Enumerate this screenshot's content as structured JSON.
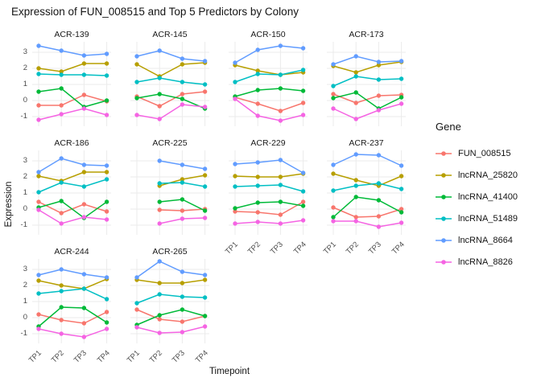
{
  "title": "Expression of FUN_008515 and Top 5 Predictors by Colony",
  "x_axis": {
    "title": "Timepoint",
    "ticks": [
      "TP1",
      "TP2",
      "TP3",
      "TP4"
    ]
  },
  "y_axis": {
    "title": "Expression",
    "ticks": [
      "3",
      "2",
      "1",
      "0",
      "-1"
    ]
  },
  "legend": {
    "title": "Gene",
    "position": "right",
    "entries": [
      {
        "label": "FUN_008515",
        "color": "#F8766D"
      },
      {
        "label": "lncRNA_25820",
        "color": "#B79F00"
      },
      {
        "label": "lncRNA_41400",
        "color": "#00BA38"
      },
      {
        "label": "lncRNA_51489",
        "color": "#00BFC4"
      },
      {
        "label": "lncRNA_8664",
        "color": "#619CFF"
      },
      {
        "label": "lncRNA_8826",
        "color": "#F564E3"
      }
    ]
  },
  "chart_data": {
    "type": "line",
    "x": [
      "TP1",
      "TP2",
      "TP3",
      "TP4"
    ],
    "xlabel": "Timepoint",
    "ylabel": "Expression",
    "ylim": [
      -1.6,
      3.65
    ],
    "y_major_gridlines": [
      3,
      2,
      1,
      0,
      -1
    ],
    "grid": true,
    "legend_position": "right",
    "facets": [
      {
        "colony": "ACR-139",
        "series": {
          "FUN_008515": [
            -0.3,
            -0.3,
            0.35,
            -0.05
          ],
          "lncRNA_25820": [
            2.0,
            1.8,
            2.3,
            2.3
          ],
          "lncRNA_41400": [
            0.55,
            0.75,
            -0.4,
            0.0
          ],
          "lncRNA_51489": [
            1.65,
            1.6,
            1.6,
            1.55
          ],
          "lncRNA_8664": [
            3.4,
            3.1,
            2.8,
            2.9
          ],
          "lncRNA_8826": [
            -1.2,
            -0.85,
            -0.5,
            -0.9
          ]
        }
      },
      {
        "colony": "ACR-145",
        "series": {
          "FUN_008515": [
            0.25,
            -0.35,
            0.4,
            0.55
          ],
          "lncRNA_25820": [
            2.25,
            1.5,
            2.25,
            2.35
          ],
          "lncRNA_41400": [
            0.15,
            0.4,
            0.1,
            -0.5
          ],
          "lncRNA_51489": [
            1.15,
            1.4,
            1.15,
            1.0
          ],
          "lncRNA_8664": [
            2.75,
            3.1,
            2.6,
            2.45
          ],
          "lncRNA_8826": [
            -0.9,
            -1.15,
            -0.25,
            -0.4
          ]
        }
      },
      {
        "colony": "ACR-150",
        "series": {
          "FUN_008515": [
            0.2,
            -0.2,
            -0.65,
            -0.15
          ],
          "lncRNA_25820": [
            2.2,
            1.85,
            1.6,
            1.75
          ],
          "lncRNA_41400": [
            0.25,
            0.65,
            0.75,
            0.6
          ],
          "lncRNA_51489": [
            1.15,
            1.65,
            1.6,
            1.9
          ],
          "lncRNA_8664": [
            2.35,
            3.15,
            3.4,
            3.25
          ],
          "lncRNA_8826": [
            0.1,
            -0.95,
            -1.25,
            -0.9
          ]
        }
      },
      {
        "colony": "ACR-173",
        "series": {
          "FUN_008515": [
            0.4,
            -0.15,
            0.3,
            0.35
          ],
          "lncRNA_25820": [
            2.15,
            1.75,
            2.2,
            2.4
          ],
          "lncRNA_41400": [
            0.15,
            0.5,
            -0.5,
            0.2
          ],
          "lncRNA_51489": [
            0.9,
            1.5,
            1.3,
            1.35
          ],
          "lncRNA_8664": [
            2.25,
            2.75,
            2.4,
            2.45
          ],
          "lncRNA_8826": [
            -0.5,
            -1.15,
            -0.6,
            -0.2
          ]
        }
      },
      {
        "colony": "ACR-186",
        "series": {
          "FUN_008515": [
            0.45,
            -0.25,
            0.3,
            -0.15
          ],
          "lncRNA_25820": [
            2.05,
            1.75,
            2.3,
            2.3
          ],
          "lncRNA_41400": [
            0.1,
            0.5,
            -0.55,
            0.45
          ],
          "lncRNA_51489": [
            1.05,
            1.65,
            1.4,
            1.85
          ],
          "lncRNA_8664": [
            2.3,
            3.15,
            2.75,
            2.7
          ],
          "lncRNA_8826": [
            -0.05,
            -0.9,
            -0.5,
            -0.65
          ]
        }
      },
      {
        "colony": "ACR-225",
        "series": {
          "FUN_008515": [
            null,
            -0.05,
            -0.1,
            0.0
          ],
          "lncRNA_25820": [
            null,
            1.45,
            1.85,
            2.1
          ],
          "lncRNA_41400": [
            null,
            0.45,
            0.6,
            -0.1
          ],
          "lncRNA_51489": [
            null,
            1.6,
            1.65,
            1.4
          ],
          "lncRNA_8664": [
            null,
            3.0,
            2.75,
            2.5
          ],
          "lncRNA_8826": [
            null,
            -0.9,
            -0.6,
            -0.55
          ]
        }
      },
      {
        "colony": "ACR-229",
        "series": {
          "FUN_008515": [
            -0.15,
            -0.2,
            -0.35,
            0.45
          ],
          "lncRNA_25820": [
            2.05,
            2.0,
            2.0,
            2.2
          ],
          "lncRNA_41400": [
            0.05,
            0.4,
            0.45,
            0.2
          ],
          "lncRNA_51489": [
            1.4,
            1.45,
            1.5,
            1.1
          ],
          "lncRNA_8664": [
            2.8,
            2.9,
            3.05,
            2.25
          ],
          "lncRNA_8826": [
            -0.9,
            -0.8,
            -0.9,
            -0.7
          ]
        }
      },
      {
        "colony": "ACR-237",
        "series": {
          "FUN_008515": [
            0.1,
            -0.5,
            -0.45,
            0.0
          ],
          "lncRNA_25820": [
            2.2,
            1.8,
            1.45,
            2.05
          ],
          "lncRNA_41400": [
            -0.5,
            0.75,
            0.55,
            -0.2
          ],
          "lncRNA_51489": [
            1.15,
            1.45,
            1.6,
            1.25
          ],
          "lncRNA_8664": [
            2.75,
            3.4,
            3.35,
            2.7
          ],
          "lncRNA_8826": [
            -0.75,
            -0.75,
            -1.1,
            -0.85
          ]
        }
      },
      {
        "colony": "ACR-244",
        "series": {
          "FUN_008515": [
            0.2,
            -0.15,
            -0.35,
            0.35
          ],
          "lncRNA_25820": [
            2.3,
            2.0,
            1.8,
            2.4
          ],
          "lncRNA_41400": [
            -0.55,
            0.65,
            0.6,
            -0.3
          ],
          "lncRNA_51489": [
            1.5,
            1.65,
            1.8,
            1.15
          ],
          "lncRNA_8664": [
            2.65,
            3.0,
            2.7,
            2.5
          ],
          "lncRNA_8826": [
            -0.7,
            -1.0,
            -1.2,
            -0.7
          ]
        }
      },
      {
        "colony": "ACR-265",
        "series": {
          "FUN_008515": [
            0.5,
            -0.1,
            -0.25,
            0.1
          ],
          "lncRNA_25820": [
            2.35,
            2.15,
            2.15,
            2.35
          ],
          "lncRNA_41400": [
            -0.45,
            0.15,
            0.5,
            0.1
          ],
          "lncRNA_51489": [
            0.9,
            1.45,
            1.3,
            1.25
          ],
          "lncRNA_8664": [
            2.5,
            3.5,
            2.85,
            2.65
          ],
          "lncRNA_8826": [
            -0.6,
            -0.95,
            -0.9,
            -0.55
          ]
        }
      }
    ]
  },
  "style": {
    "gridline_color": "#ebebeb",
    "background": "#ffffff"
  }
}
